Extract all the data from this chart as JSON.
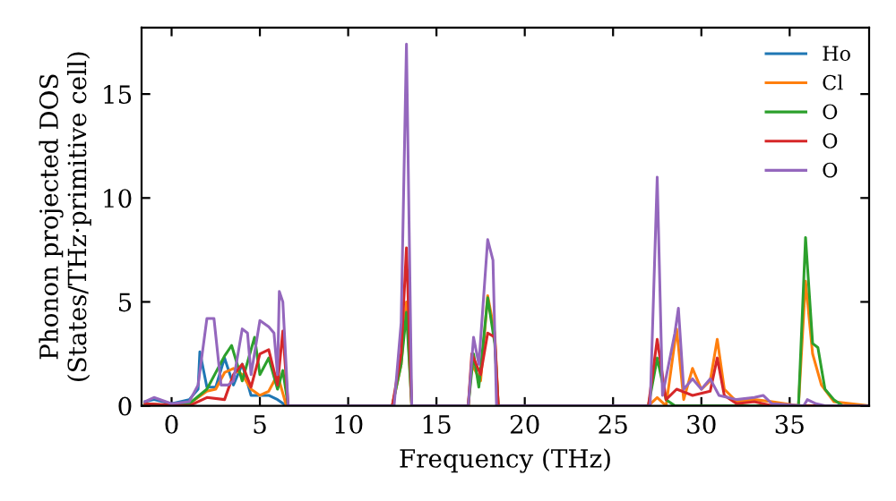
{
  "chart_data": {
    "type": "line",
    "xlabel": "Frequency (THz)",
    "ylabel": "Phonon projected DOS\n(States/THz·primitive cell)",
    "xlim": [
      -1.7,
      39.5
    ],
    "ylim": [
      0,
      18.2
    ],
    "xticks": [
      0,
      5,
      10,
      15,
      20,
      25,
      30,
      35
    ],
    "yticks": [
      0,
      5,
      10,
      15
    ],
    "grid": false,
    "legend": "top right",
    "line_style": "solid",
    "marker": "none",
    "series": [
      {
        "name": "Ho",
        "color": "#1f77b4",
        "x": [
          -1.5,
          -1,
          0,
          1,
          1.5,
          1.6,
          2,
          2.5,
          3,
          3.5,
          4,
          4.5,
          5,
          5.5,
          6,
          6.5
        ],
        "values": [
          0.2,
          0.3,
          0.1,
          0.3,
          0.8,
          2.6,
          0.9,
          0.9,
          2.3,
          1.0,
          2.0,
          0.5,
          0.5,
          0.5,
          0.3,
          0
        ]
      },
      {
        "name": "Cl",
        "color": "#ff7f0e",
        "x": [
          -1.5,
          0,
          1,
          1.5,
          2,
          2.5,
          3,
          3.5,
          4,
          4.5,
          5,
          5.5,
          6,
          6.5,
          12.5,
          13,
          13.3,
          13.6,
          16.8,
          17,
          17.5,
          17.9,
          18.3,
          18.5,
          27,
          27.5,
          28,
          28.6,
          29,
          29.5,
          30,
          30.5,
          30.9,
          31.3,
          32,
          33,
          34,
          35.5,
          35.9,
          36.3,
          36.8,
          37.5,
          39.5
        ],
        "values": [
          0.1,
          0,
          0.1,
          0.4,
          0.7,
          0.8,
          1.6,
          1.8,
          1.5,
          0.8,
          0.5,
          0.7,
          1.5,
          0,
          0,
          2,
          5,
          0,
          0,
          2,
          1.2,
          5.3,
          3.5,
          0,
          0,
          0.4,
          0,
          3.7,
          0.3,
          1.8,
          0.8,
          1.2,
          3.2,
          0.8,
          0.2,
          0.3,
          0.2,
          0,
          6,
          2.5,
          1,
          0.2,
          0
        ]
      },
      {
        "name": "O",
        "color": "#2ca02c",
        "x": [
          -1.5,
          0,
          1,
          2,
          3,
          3.4,
          4,
          4.7,
          5,
          5.5,
          6,
          6.3,
          6.6,
          12.5,
          13,
          13.3,
          13.6,
          16.8,
          17.1,
          17.4,
          17.9,
          18.3,
          18.5,
          27,
          27.5,
          28,
          28.5,
          35.5,
          35.9,
          36.3,
          36.6,
          37,
          37.5,
          38,
          39.5
        ],
        "values": [
          0.1,
          0,
          0.1,
          0.8,
          2.4,
          2.9,
          1.2,
          3.3,
          1.5,
          2.3,
          0.8,
          1.7,
          0,
          0,
          2,
          4.5,
          0,
          0,
          2.5,
          0.9,
          5.2,
          3.0,
          0,
          0,
          2.3,
          0.3,
          0,
          0,
          8.1,
          3.0,
          2.8,
          0.8,
          0.3,
          0,
          0
        ]
      },
      {
        "name": "O",
        "color": "#d62728",
        "x": [
          -1.5,
          1,
          2,
          3,
          3.5,
          4,
          4.5,
          5,
          5.5,
          6,
          6.3,
          6.6,
          12.5,
          13,
          13.3,
          13.6,
          16.8,
          17,
          17.5,
          17.9,
          18.3,
          18.5,
          27,
          27.5,
          28,
          28.6,
          29.5,
          30.5,
          30.9,
          31.3,
          32,
          33,
          34,
          39.5
        ],
        "values": [
          0.1,
          0,
          0.4,
          0.3,
          1.5,
          2.0,
          0.9,
          2.5,
          2.7,
          1.0,
          3.6,
          0,
          0,
          2.5,
          7.6,
          0,
          0,
          2.5,
          1.5,
          3.5,
          3.3,
          0,
          0,
          3.2,
          0.3,
          0.8,
          0.5,
          0.7,
          2.3,
          0.5,
          0.1,
          0.2,
          0,
          0
        ]
      },
      {
        "name": "O",
        "color": "#9467bd",
        "x": [
          -1.5,
          -1,
          0,
          1,
          1.5,
          2,
          2.4,
          2.8,
          3.2,
          3.5,
          4,
          4.3,
          4.5,
          5,
          5.5,
          5.8,
          6,
          6.1,
          6.3,
          6.6,
          12.6,
          13,
          13.3,
          13.6,
          16.8,
          17.1,
          17.4,
          17.9,
          18.2,
          18.4,
          27.1,
          27.5,
          27.8,
          28.5,
          28.7,
          29,
          29.5,
          30,
          30.5,
          31,
          32,
          33,
          33.5,
          34,
          35.8,
          36,
          36.5,
          37,
          39.5
        ],
        "values": [
          0.2,
          0.4,
          0.1,
          0.2,
          1.0,
          4.2,
          4.2,
          1.0,
          1.0,
          1.2,
          3.7,
          3.5,
          1.5,
          4.1,
          3.8,
          3.5,
          1.5,
          5.5,
          5.0,
          0,
          0,
          4,
          17.4,
          0,
          0,
          3.3,
          2.0,
          8.0,
          7.0,
          0,
          0,
          11.0,
          0.5,
          3.5,
          4.7,
          0.8,
          1.3,
          0.8,
          1.3,
          0.5,
          0.3,
          0.4,
          0.5,
          0.1,
          0,
          0.3,
          0.1,
          0,
          0
        ]
      }
    ]
  }
}
